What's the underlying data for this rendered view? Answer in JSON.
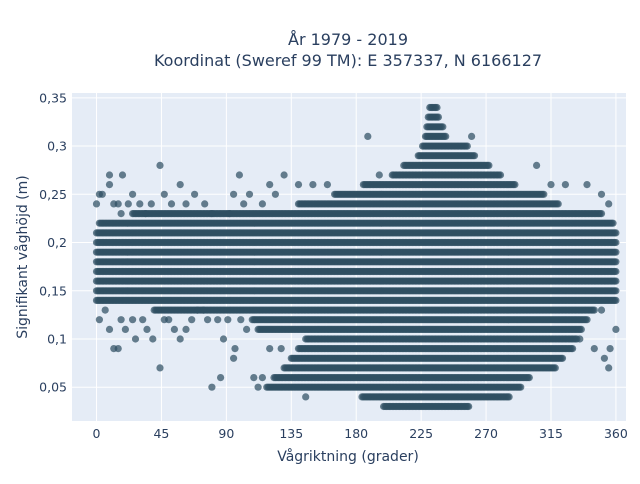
{
  "chart_data": {
    "type": "scatter",
    "title": [
      "År 1979 - 2019",
      "Koordinat (Sweref 99 TM): E 357337, N 6166127"
    ],
    "xlabel": "Vågriktning (grader)",
    "ylabel": "Signifikant våghöjd (m)",
    "xlim": [
      -17,
      367
    ],
    "ylim": [
      0.015,
      0.355
    ],
    "xticks": [
      0,
      45,
      90,
      135,
      180,
      225,
      270,
      315,
      360
    ],
    "xtick_labels": [
      "0",
      "45",
      "90",
      "135",
      "180",
      "225",
      "270",
      "315",
      "360"
    ],
    "yticks": [
      0.05,
      0.1,
      0.15,
      0.2,
      0.25,
      0.3,
      0.35
    ],
    "ytick_labels": [
      "0,05",
      "0,1",
      "0,15",
      "0,2",
      "0,25",
      "0,3",
      "0,35"
    ],
    "grid": true,
    "marker_color": "#2f4f63",
    "plot_background": "#e5ecf6",
    "x_step_degrees": 1,
    "y_step_m": 0.01,
    "dense_bands_by_height": [
      {
        "y": 0.03,
        "x_min": 199,
        "x_max": 258
      },
      {
        "y": 0.04,
        "x_min": 184,
        "x_max": 286
      },
      {
        "y": 0.05,
        "x_min": 118,
        "x_max": 294
      },
      {
        "y": 0.06,
        "x_min": 123,
        "x_max": 300
      },
      {
        "y": 0.07,
        "x_min": 130,
        "x_max": 318
      },
      {
        "y": 0.08,
        "x_min": 135,
        "x_max": 323
      },
      {
        "y": 0.09,
        "x_min": 140,
        "x_max": 330
      },
      {
        "y": 0.1,
        "x_min": 145,
        "x_max": 333
      },
      {
        "y": 0.11,
        "x_min": 112,
        "x_max": 336
      },
      {
        "y": 0.12,
        "x_min": 108,
        "x_max": 340
      },
      {
        "y": 0.13,
        "x_min": 40,
        "x_max": 345
      },
      {
        "y": 0.14,
        "x_min": 0,
        "x_max": 360
      },
      {
        "y": 0.15,
        "x_min": 0,
        "x_max": 360
      },
      {
        "y": 0.16,
        "x_min": 0,
        "x_max": 360
      },
      {
        "y": 0.17,
        "x_min": 0,
        "x_max": 360
      },
      {
        "y": 0.18,
        "x_min": 0,
        "x_max": 360
      },
      {
        "y": 0.19,
        "x_min": 0,
        "x_max": 360
      },
      {
        "y": 0.2,
        "x_min": 0,
        "x_max": 360
      },
      {
        "y": 0.21,
        "x_min": 0,
        "x_max": 360
      },
      {
        "y": 0.22,
        "x_min": 2,
        "x_max": 358
      },
      {
        "y": 0.23,
        "x_min": 25,
        "x_max": 350
      },
      {
        "y": 0.24,
        "x_min": 140,
        "x_max": 320
      },
      {
        "y": 0.25,
        "x_min": 165,
        "x_max": 310
      },
      {
        "y": 0.26,
        "x_min": 185,
        "x_max": 290
      },
      {
        "y": 0.27,
        "x_min": 205,
        "x_max": 280
      },
      {
        "y": 0.28,
        "x_min": 213,
        "x_max": 272
      },
      {
        "y": 0.29,
        "x_min": 223,
        "x_max": 262
      },
      {
        "y": 0.3,
        "x_min": 226,
        "x_max": 257
      },
      {
        "y": 0.31,
        "x_min": 228,
        "x_max": 242
      },
      {
        "y": 0.32,
        "x_min": 229,
        "x_max": 240
      },
      {
        "y": 0.33,
        "x_min": 230,
        "x_max": 237
      },
      {
        "y": 0.34,
        "x_min": 231,
        "x_max": 236
      }
    ],
    "scattered_points": [
      {
        "x": 0,
        "y": 0.24
      },
      {
        "x": 2,
        "y": 0.25
      },
      {
        "x": 4,
        "y": 0.25
      },
      {
        "x": 9,
        "y": 0.26
      },
      {
        "x": 9,
        "y": 0.27
      },
      {
        "x": 12,
        "y": 0.24
      },
      {
        "x": 15,
        "y": 0.24
      },
      {
        "x": 17,
        "y": 0.23
      },
      {
        "x": 18,
        "y": 0.27
      },
      {
        "x": 22,
        "y": 0.24
      },
      {
        "x": 25,
        "y": 0.25
      },
      {
        "x": 30,
        "y": 0.24
      },
      {
        "x": 34,
        "y": 0.23
      },
      {
        "x": 38,
        "y": 0.24
      },
      {
        "x": 44,
        "y": 0.28
      },
      {
        "x": 47,
        "y": 0.25
      },
      {
        "x": 52,
        "y": 0.24
      },
      {
        "x": 58,
        "y": 0.26
      },
      {
        "x": 62,
        "y": 0.24
      },
      {
        "x": 68,
        "y": 0.25
      },
      {
        "x": 75,
        "y": 0.24
      },
      {
        "x": 80,
        "y": 0.23
      },
      {
        "x": 92,
        "y": 0.23
      },
      {
        "x": 95,
        "y": 0.25
      },
      {
        "x": 99,
        "y": 0.27
      },
      {
        "x": 102,
        "y": 0.24
      },
      {
        "x": 106,
        "y": 0.25
      },
      {
        "x": 115,
        "y": 0.24
      },
      {
        "x": 120,
        "y": 0.26
      },
      {
        "x": 124,
        "y": 0.25
      },
      {
        "x": 130,
        "y": 0.27
      },
      {
        "x": 140,
        "y": 0.26
      },
      {
        "x": 150,
        "y": 0.26
      },
      {
        "x": 160,
        "y": 0.26
      },
      {
        "x": 188,
        "y": 0.31
      },
      {
        "x": 196,
        "y": 0.27
      },
      {
        "x": 260,
        "y": 0.31
      },
      {
        "x": 305,
        "y": 0.28
      },
      {
        "x": 315,
        "y": 0.26
      },
      {
        "x": 325,
        "y": 0.26
      },
      {
        "x": 340,
        "y": 0.26
      },
      {
        "x": 350,
        "y": 0.25
      },
      {
        "x": 355,
        "y": 0.24
      },
      {
        "x": 2,
        "y": 0.12
      },
      {
        "x": 6,
        "y": 0.13
      },
      {
        "x": 9,
        "y": 0.11
      },
      {
        "x": 12,
        "y": 0.09
      },
      {
        "x": 15,
        "y": 0.09
      },
      {
        "x": 17,
        "y": 0.12
      },
      {
        "x": 20,
        "y": 0.11
      },
      {
        "x": 25,
        "y": 0.12
      },
      {
        "x": 27,
        "y": 0.1
      },
      {
        "x": 32,
        "y": 0.12
      },
      {
        "x": 35,
        "y": 0.11
      },
      {
        "x": 39,
        "y": 0.1
      },
      {
        "x": 44,
        "y": 0.07
      },
      {
        "x": 47,
        "y": 0.12
      },
      {
        "x": 50,
        "y": 0.12
      },
      {
        "x": 54,
        "y": 0.11
      },
      {
        "x": 58,
        "y": 0.1
      },
      {
        "x": 62,
        "y": 0.11
      },
      {
        "x": 66,
        "y": 0.12
      },
      {
        "x": 70,
        "y": 0.13
      },
      {
        "x": 74,
        "y": 0.13
      },
      {
        "x": 77,
        "y": 0.12
      },
      {
        "x": 80,
        "y": 0.05
      },
      {
        "x": 84,
        "y": 0.12
      },
      {
        "x": 86,
        "y": 0.06
      },
      {
        "x": 88,
        "y": 0.1
      },
      {
        "x": 91,
        "y": 0.12
      },
      {
        "x": 95,
        "y": 0.08
      },
      {
        "x": 96,
        "y": 0.09
      },
      {
        "x": 100,
        "y": 0.12
      },
      {
        "x": 104,
        "y": 0.11
      },
      {
        "x": 109,
        "y": 0.06
      },
      {
        "x": 112,
        "y": 0.05
      },
      {
        "x": 115,
        "y": 0.06
      },
      {
        "x": 120,
        "y": 0.09
      },
      {
        "x": 128,
        "y": 0.09
      },
      {
        "x": 145,
        "y": 0.04
      },
      {
        "x": 350,
        "y": 0.13
      },
      {
        "x": 352,
        "y": 0.08
      },
      {
        "x": 355,
        "y": 0.07
      },
      {
        "x": 356,
        "y": 0.09
      },
      {
        "x": 360,
        "y": 0.11
      },
      {
        "x": 345,
        "y": 0.09
      },
      {
        "x": 335,
        "y": 0.1
      }
    ]
  }
}
